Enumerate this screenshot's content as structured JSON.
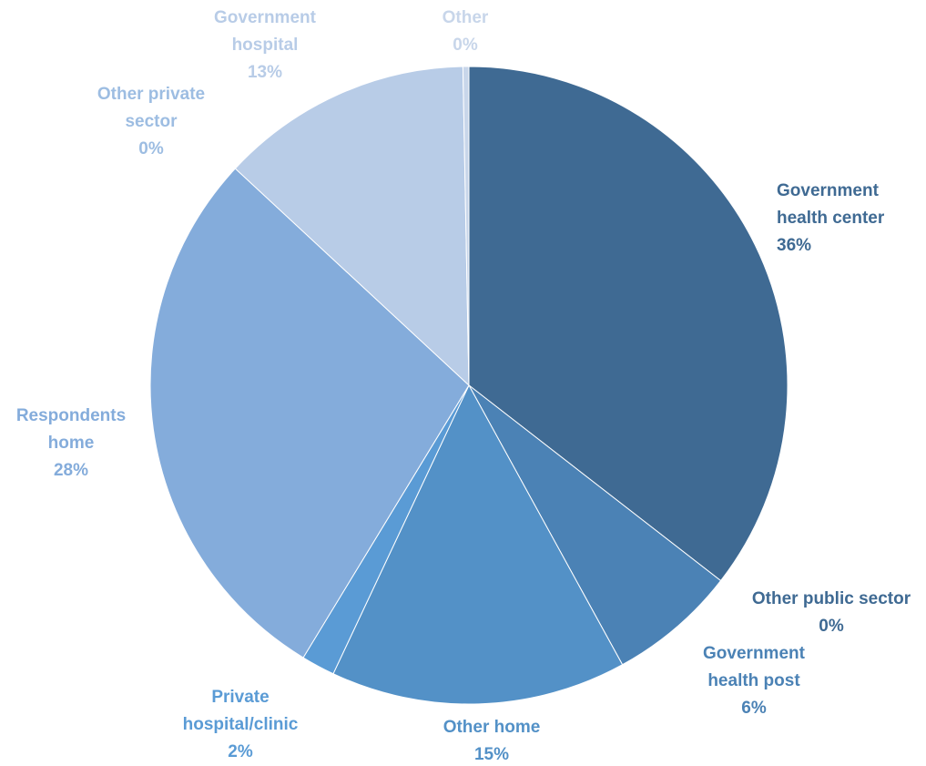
{
  "chart_data": {
    "type": "pie",
    "title": "",
    "start_angle_deg": 0,
    "direction": "clockwise",
    "slices": [
      {
        "name": "Government health center",
        "label_lines": [
          "Government",
          "health center"
        ],
        "percent_label": "36%",
        "value": 35.5,
        "color": "#3f6a93",
        "label_color": "#3f6a93",
        "label_anchor": "start"
      },
      {
        "name": "Other public sector",
        "label_lines": [
          "Other public sector"
        ],
        "percent_label": "0%",
        "value": 0.0,
        "color": "#3f6a93",
        "label_color": "#3f6a93",
        "label_anchor": "middle"
      },
      {
        "name": "Government health post",
        "label_lines": [
          "Government",
          "health post"
        ],
        "percent_label": "6%",
        "value": 6.5,
        "color": "#4b82b5",
        "label_color": "#4b82b5",
        "label_anchor": "middle"
      },
      {
        "name": "Other home",
        "label_lines": [
          "Other home"
        ],
        "percent_label": "15%",
        "value": 15.0,
        "color": "#5391c7",
        "label_color": "#5391c7",
        "label_anchor": "middle"
      },
      {
        "name": "Private hospital/clinic",
        "label_lines": [
          "Private",
          "hospital/clinic"
        ],
        "percent_label": "2%",
        "value": 1.7,
        "color": "#5a9bd5",
        "label_color": "#5a9bd5",
        "label_anchor": "middle"
      },
      {
        "name": "Respondents home",
        "label_lines": [
          "Respondents",
          "home"
        ],
        "percent_label": "28%",
        "value": 28.2,
        "color": "#84acdb",
        "label_color": "#84acdb",
        "label_anchor": "middle"
      },
      {
        "name": "Other private sector",
        "label_lines": [
          "Other private",
          "sector"
        ],
        "percent_label": "0%",
        "value": 0.0,
        "color": "#b8cce7",
        "label_color": "#9dbde2",
        "label_anchor": "middle"
      },
      {
        "name": "Government hospital",
        "label_lines": [
          "Government",
          "hospital"
        ],
        "percent_label": "13%",
        "value": 12.8,
        "color": "#b8cce7",
        "label_color": "#b8cce7",
        "label_anchor": "middle"
      },
      {
        "name": "Other",
        "label_lines": [
          "Other"
        ],
        "percent_label": "0%",
        "value": 0.3,
        "color": "#c8d6ea",
        "label_color": "#c8d6ea",
        "label_anchor": "middle"
      }
    ]
  }
}
